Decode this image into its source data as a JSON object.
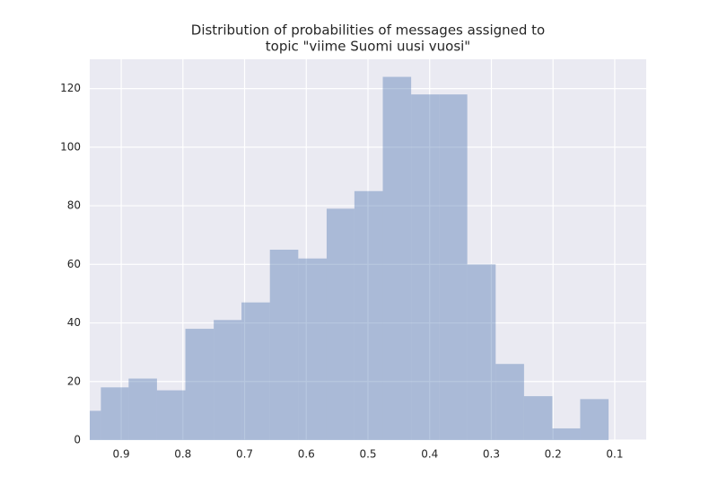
{
  "chart_data": {
    "type": "histogram",
    "title": [
      "Distribution of probabilities of messages assigned to",
      "topic \"viime Suomi uusi vuosi\""
    ],
    "bins": [
      0.979,
      0.933,
      0.888,
      0.842,
      0.796,
      0.75,
      0.705,
      0.659,
      0.613,
      0.567,
      0.522,
      0.476,
      0.43,
      0.384,
      0.339,
      0.293,
      0.247,
      0.201,
      0.156,
      0.11
    ],
    "values": [
      10,
      18,
      21,
      17,
      38,
      41,
      47,
      65,
      62,
      79,
      85,
      124,
      118,
      118,
      60,
      26,
      15,
      4,
      14
    ],
    "color": "#4c72b0",
    "xlim": [
      0.951,
      0.049
    ],
    "xticks": [
      0.9,
      0.8,
      0.7,
      0.6,
      0.5,
      0.4,
      0.3,
      0.2,
      0.1
    ],
    "ylim": [
      0,
      130
    ],
    "yticks": [
      0,
      20,
      40,
      60,
      80,
      100,
      120
    ],
    "grid": true
  }
}
